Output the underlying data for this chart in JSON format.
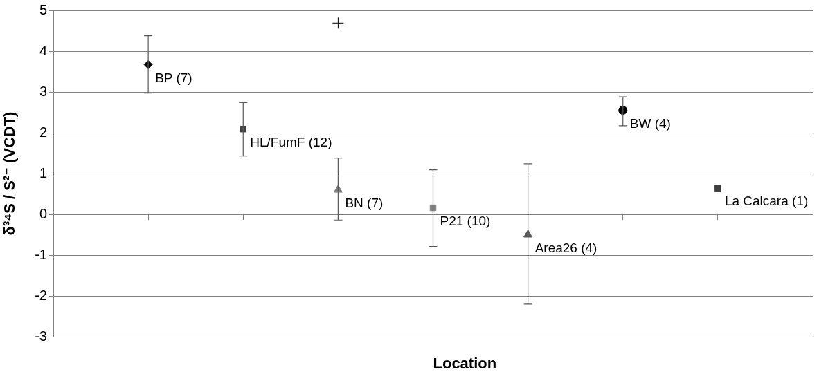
{
  "chart_data": {
    "type": "scatter",
    "xlabel": "Location",
    "ylabel": "δ³⁴S / S²⁻ (VCDT)",
    "categories": [
      null,
      null,
      null,
      null,
      null,
      null,
      null
    ],
    "ylim": [
      -3,
      5
    ],
    "yticks": [
      -3,
      -2,
      -1,
      0,
      1,
      2,
      3,
      4,
      5
    ],
    "grid": "y",
    "legend": false,
    "series": [
      {
        "name": "BP (7)",
        "color": "#000000",
        "marker": "diamond",
        "values": [
          3.67,
          null,
          null,
          null,
          null,
          null,
          null
        ],
        "errors": [
          [
            2.97,
            4.38
          ],
          null,
          null,
          null,
          null,
          null,
          null
        ]
      },
      {
        "name": "HL/FumF (12)",
        "color": "#404040",
        "marker": "square",
        "values": [
          null,
          2.09,
          null,
          null,
          null,
          null,
          null
        ],
        "errors": [
          null,
          [
            1.43,
            2.74
          ],
          null,
          null,
          null,
          null,
          null
        ]
      },
      {
        "name": "BN (7)",
        "color": "#808080",
        "marker": "triangle",
        "values": [
          null,
          null,
          0.6,
          null,
          null,
          null,
          null
        ],
        "errors": [
          null,
          null,
          [
            -0.14,
            1.38
          ],
          null,
          null,
          null,
          null
        ]
      },
      {
        "name": "P21 (10)",
        "color": "#808080",
        "marker": "square",
        "values": [
          null,
          null,
          null,
          0.16,
          null,
          null,
          null
        ],
        "errors": [
          null,
          null,
          null,
          [
            -0.79,
            1.09
          ],
          null,
          null,
          null
        ]
      },
      {
        "name": "Area26 (4)",
        "color": "#595959",
        "marker": "triangle",
        "values": [
          null,
          null,
          null,
          null,
          -0.5,
          null,
          null
        ],
        "errors": [
          null,
          null,
          null,
          null,
          [
            -2.2,
            1.24
          ],
          null,
          null
        ]
      },
      {
        "name": "BW (4)",
        "color": "#000000",
        "marker": "circle",
        "values": [
          null,
          null,
          null,
          null,
          null,
          2.55,
          null
        ],
        "errors": [
          null,
          null,
          null,
          null,
          null,
          [
            2.17,
            2.88
          ],
          null
        ]
      },
      {
        "name": "La Calcara (1)",
        "color": "#404040",
        "marker": "square",
        "values": [
          null,
          null,
          null,
          null,
          null,
          null,
          0.64
        ]
      },
      {
        "color": "#000000",
        "marker": "cross",
        "values": [
          null,
          null,
          4.69,
          null,
          null,
          null,
          null
        ]
      }
    ]
  }
}
